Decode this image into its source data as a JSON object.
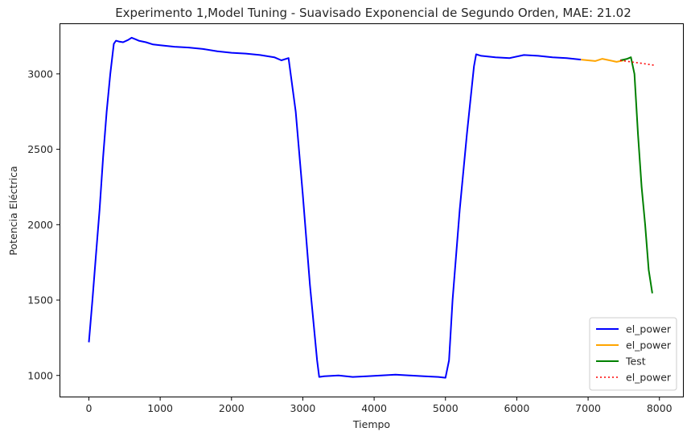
{
  "chart_data": {
    "type": "line",
    "title": "Experimento 1,Model Tuning - Suavisado Exponencial de Segundo Orden, MAE: 21.02",
    "xlabel": "Tiempo",
    "ylabel": "Potencia Eléctrica",
    "xlim": [
      -400,
      8330
    ],
    "ylim": [
      860,
      3330
    ],
    "xticks": [
      0,
      1000,
      2000,
      3000,
      4000,
      5000,
      6000,
      7000,
      8000
    ],
    "yticks": [
      1000,
      1500,
      2000,
      2500,
      3000
    ],
    "grid": false,
    "legend_position": "lower-right",
    "series": [
      {
        "name": "el_power",
        "color": "#0000ff",
        "style": "solid",
        "x": [
          0,
          50,
          100,
          150,
          200,
          250,
          300,
          350,
          380,
          420,
          480,
          550,
          600,
          650,
          700,
          800,
          900,
          1000,
          1200,
          1400,
          1600,
          1800,
          2000,
          2200,
          2400,
          2600,
          2700,
          2800,
          2900,
          3000,
          3100,
          3200,
          3230,
          3300,
          3500,
          3700,
          3900,
          4100,
          4300,
          4500,
          4700,
          4900,
          5000,
          5050,
          5100,
          5200,
          5300,
          5400,
          5430,
          5500,
          5700,
          5900,
          6100,
          6300,
          6500,
          6700,
          6900
        ],
        "y": [
          1220,
          1500,
          1800,
          2100,
          2450,
          2750,
          3000,
          3200,
          3220,
          3215,
          3210,
          3225,
          3240,
          3230,
          3220,
          3210,
          3195,
          3190,
          3180,
          3175,
          3165,
          3150,
          3140,
          3135,
          3125,
          3110,
          3090,
          3105,
          2750,
          2200,
          1600,
          1100,
          990,
          995,
          1000,
          990,
          995,
          1000,
          1005,
          1000,
          995,
          990,
          985,
          1100,
          1500,
          2100,
          2600,
          3050,
          3130,
          3120,
          3110,
          3105,
          3125,
          3120,
          3110,
          3105,
          3095
        ]
      },
      {
        "name": "el_power",
        "color": "#ffa500",
        "style": "solid",
        "x": [
          6900,
          7000,
          7100,
          7200,
          7300,
          7400,
          7500
        ],
        "y": [
          3095,
          3090,
          3085,
          3100,
          3090,
          3080,
          3090
        ]
      },
      {
        "name": "Test",
        "color": "#008000",
        "style": "solid",
        "x": [
          7450,
          7500,
          7550,
          7600,
          7650,
          7700,
          7750,
          7800,
          7850,
          7900
        ],
        "y": [
          3090,
          3095,
          3100,
          3110,
          3000,
          2600,
          2250,
          2000,
          1700,
          1545
        ]
      },
      {
        "name": "el_power",
        "color": "#ff0000",
        "style": "dotted",
        "x": [
          7450,
          7600,
          7750,
          7920
        ],
        "y": [
          3090,
          3080,
          3070,
          3058
        ]
      }
    ]
  }
}
